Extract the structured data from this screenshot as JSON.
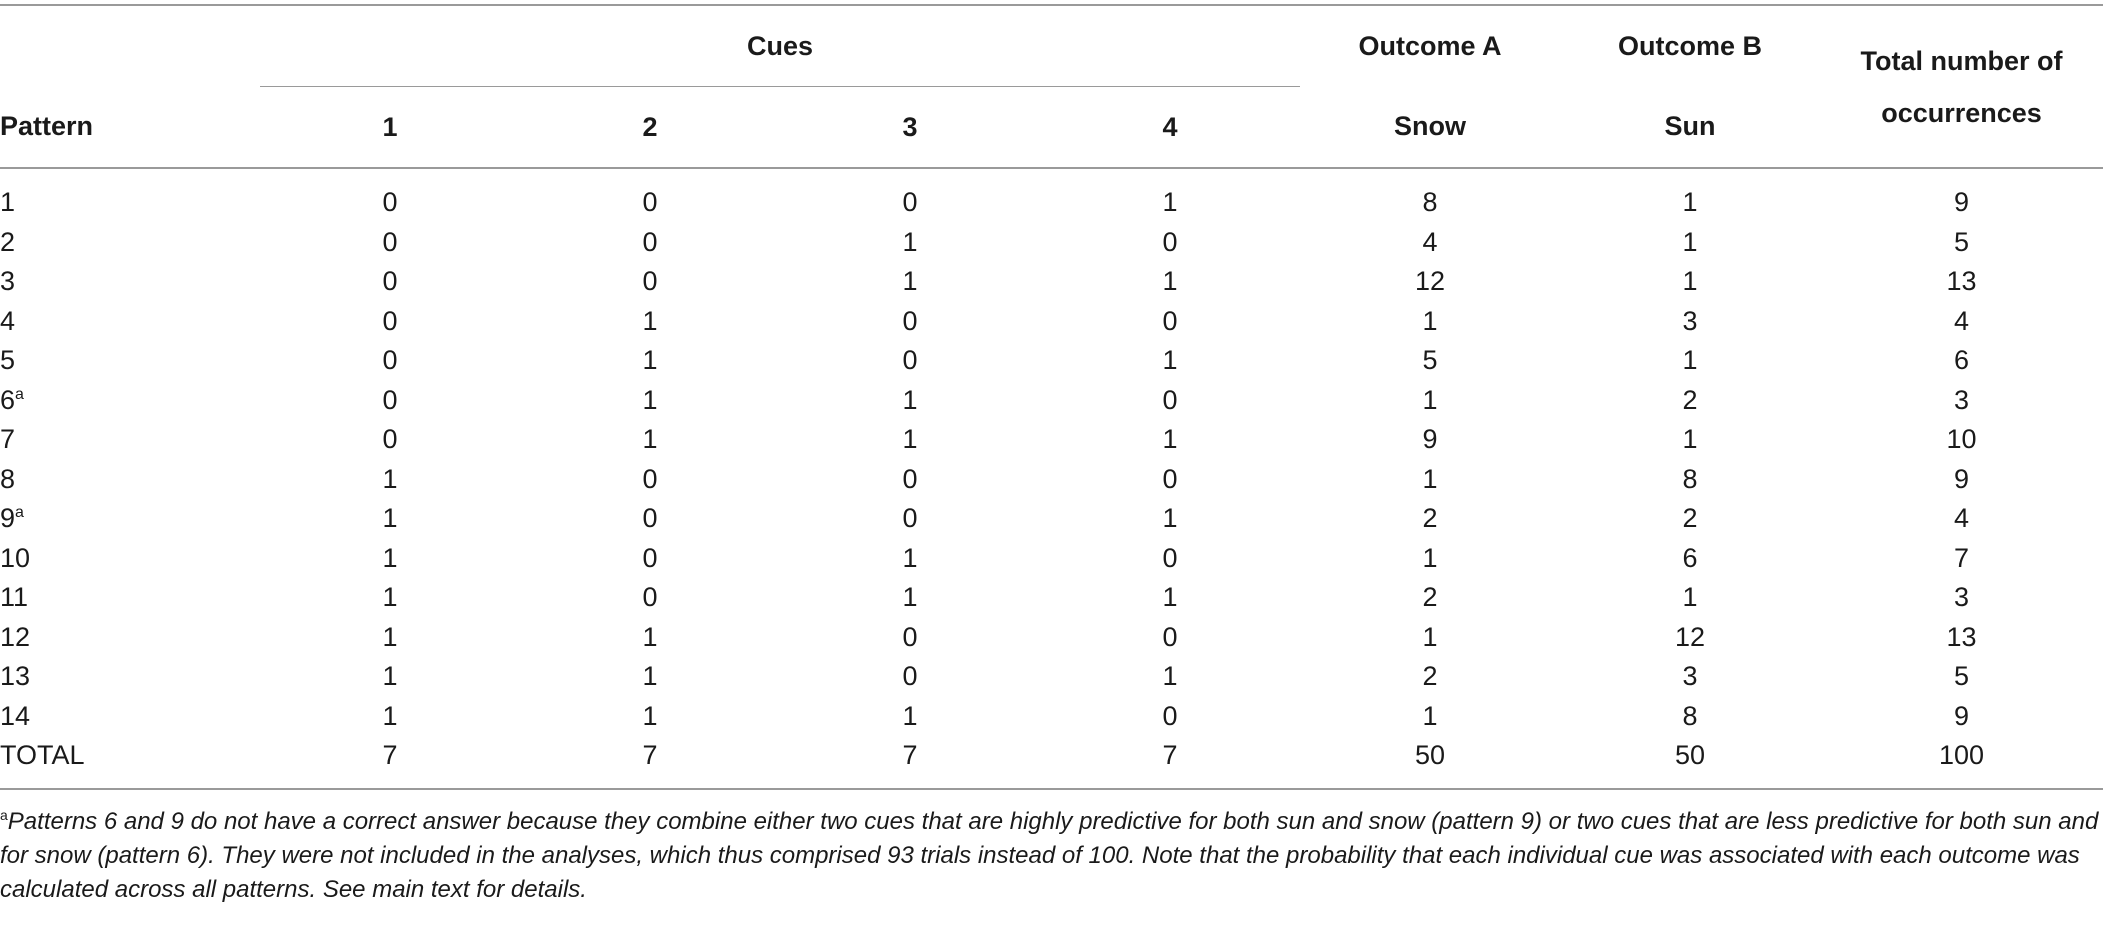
{
  "header": {
    "pattern_label": "Pattern",
    "cues_label": "Cues",
    "cue_numbers": [
      "1",
      "2",
      "3",
      "4"
    ],
    "outcome_a_label": "Outcome A",
    "outcome_a_name": "Snow",
    "outcome_b_label": "Outcome B",
    "outcome_b_name": "Sun",
    "total_label": "Total number of occurrences"
  },
  "rows": [
    {
      "pattern": "1",
      "sup": "",
      "c1": "0",
      "c2": "0",
      "c3": "0",
      "c4": "1",
      "snow": "8",
      "sun": "1",
      "total": "9"
    },
    {
      "pattern": "2",
      "sup": "",
      "c1": "0",
      "c2": "0",
      "c3": "1",
      "c4": "0",
      "snow": "4",
      "sun": "1",
      "total": "5"
    },
    {
      "pattern": "3",
      "sup": "",
      "c1": "0",
      "c2": "0",
      "c3": "1",
      "c4": "1",
      "snow": "12",
      "sun": "1",
      "total": "13"
    },
    {
      "pattern": "4",
      "sup": "",
      "c1": "0",
      "c2": "1",
      "c3": "0",
      "c4": "0",
      "snow": "1",
      "sun": "3",
      "total": "4"
    },
    {
      "pattern": "5",
      "sup": "",
      "c1": "0",
      "c2": "1",
      "c3": "0",
      "c4": "1",
      "snow": "5",
      "sun": "1",
      "total": "6"
    },
    {
      "pattern": "6",
      "sup": "a",
      "c1": "0",
      "c2": "1",
      "c3": "1",
      "c4": "0",
      "snow": "1",
      "sun": "2",
      "total": "3"
    },
    {
      "pattern": "7",
      "sup": "",
      "c1": "0",
      "c2": "1",
      "c3": "1",
      "c4": "1",
      "snow": "9",
      "sun": "1",
      "total": "10"
    },
    {
      "pattern": "8",
      "sup": "",
      "c1": "1",
      "c2": "0",
      "c3": "0",
      "c4": "0",
      "snow": "1",
      "sun": "8",
      "total": "9"
    },
    {
      "pattern": "9",
      "sup": "a",
      "c1": "1",
      "c2": "0",
      "c3": "0",
      "c4": "1",
      "snow": "2",
      "sun": "2",
      "total": "4"
    },
    {
      "pattern": "10",
      "sup": "",
      "c1": "1",
      "c2": "0",
      "c3": "1",
      "c4": "0",
      "snow": "1",
      "sun": "6",
      "total": "7"
    },
    {
      "pattern": "11",
      "sup": "",
      "c1": "1",
      "c2": "0",
      "c3": "1",
      "c4": "1",
      "snow": "2",
      "sun": "1",
      "total": "3"
    },
    {
      "pattern": "12",
      "sup": "",
      "c1": "1",
      "c2": "1",
      "c3": "0",
      "c4": "0",
      "snow": "1",
      "sun": "12",
      "total": "13"
    },
    {
      "pattern": "13",
      "sup": "",
      "c1": "1",
      "c2": "1",
      "c3": "0",
      "c4": "1",
      "snow": "2",
      "sun": "3",
      "total": "5"
    },
    {
      "pattern": "14",
      "sup": "",
      "c1": "1",
      "c2": "1",
      "c3": "1",
      "c4": "0",
      "snow": "1",
      "sun": "8",
      "total": "9"
    },
    {
      "pattern": "TOTAL",
      "sup": "",
      "c1": "7",
      "c2": "7",
      "c3": "7",
      "c4": "7",
      "snow": "50",
      "sun": "50",
      "total": "100"
    }
  ],
  "footnote": {
    "marker": "a",
    "text": "Patterns 6 and 9 do not have a correct answer because they combine either two cues that are highly predictive for both sun and snow (pattern 9) or two cues that are less predictive for both sun and for snow (pattern 6). They were not included in the analyses, which thus comprised 93 trials instead of 100. Note that the probability that each individual cue was associated with each outcome was calculated across all patterns. See main text for details."
  }
}
